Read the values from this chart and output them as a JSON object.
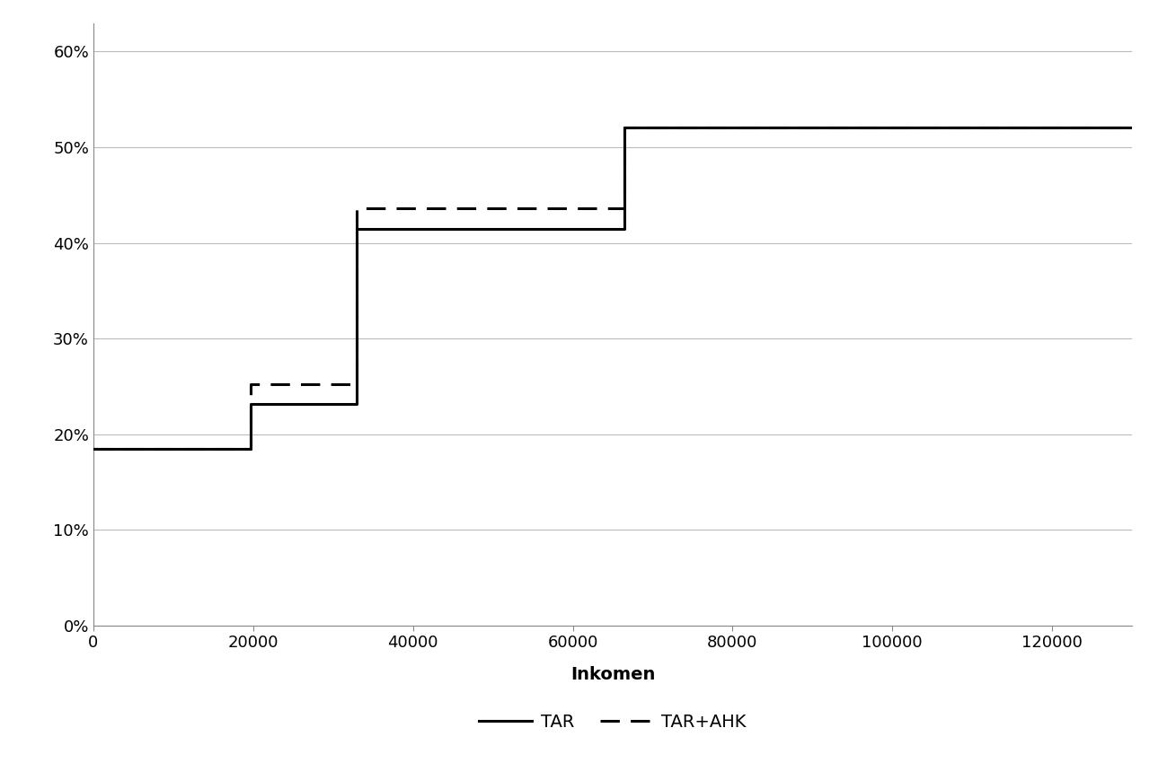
{
  "tar_x": [
    0,
    19646,
    19646,
    33000,
    33000,
    66417,
    66417,
    130000
  ],
  "tar_y": [
    0.185,
    0.185,
    0.232,
    0.232,
    0.415,
    0.415,
    0.521,
    0.521
  ],
  "ahk_x": [
    0,
    19646,
    19646,
    33000,
    33000,
    66417,
    66417,
    130000
  ],
  "ahk_y": [
    0.185,
    0.185,
    0.252,
    0.252,
    0.436,
    0.436,
    0.521,
    0.521
  ],
  "xlabel": "Inkomen",
  "xlabel_fontsize": 14,
  "xlabel_fontweight": "bold",
  "yticks": [
    0.0,
    0.1,
    0.2,
    0.3,
    0.4,
    0.5,
    0.6
  ],
  "ytick_labels": [
    "0%",
    "10%",
    "20%",
    "30%",
    "40%",
    "50%",
    "60%"
  ],
  "xticks": [
    0,
    20000,
    40000,
    60000,
    80000,
    100000,
    120000
  ],
  "xlim": [
    0,
    130000
  ],
  "ylim": [
    0.0,
    0.63
  ],
  "legend_tar": "TAR",
  "legend_ahk": "TAR+AHK",
  "line_color": "#000000",
  "line_width": 2.2,
  "background_color": "#ffffff",
  "grid_color": "#bbbbbb",
  "spine_color": "#888888"
}
